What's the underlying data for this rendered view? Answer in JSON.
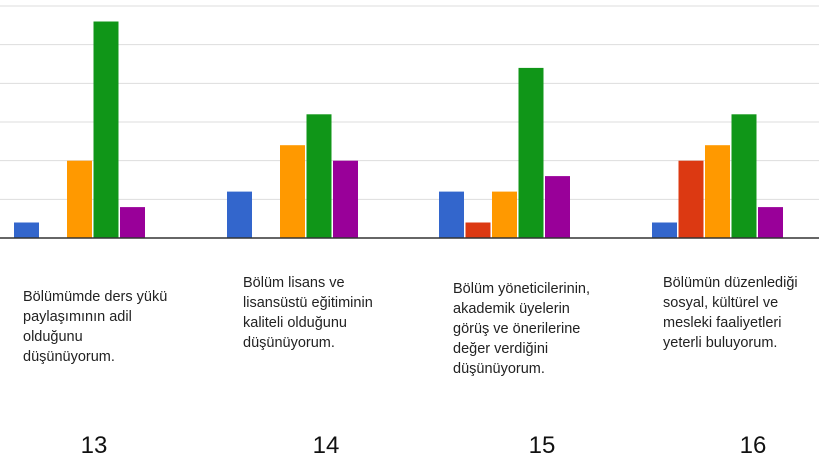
{
  "chart_data": {
    "type": "bar",
    "categories": [
      "Bölümümde ders yükü paylaşımının adil olduğunu düşünüyorum.",
      "Bölüm lisans ve lisansüstü eğitiminin kaliteli olduğunu düşünüyorum.",
      "Bölüm yöneticilerinin, akademik üyelerin görüş ve önerilerine değer verdiğini düşünüyorum.",
      "Bölümün düzenlediği sosyal, kültürel ve mesleki faaliyetleri yeterli buluyorum."
    ],
    "category_label_lines": [
      [
        "Bölümümde ders yükü",
        "paylaşımının adil",
        "olduğunu",
        "düşünüyorum."
      ],
      [
        "Bölüm lisans ve",
        "lisansüstü eğitiminin",
        "kaliteli olduğunu",
        "düşünüyorum."
      ],
      [
        "Bölüm yöneticilerinin,",
        "akademik üyelerin",
        "görüş ve önerilerine",
        "değer verdiğini",
        "düşünüyorum."
      ],
      [
        "Bölümün düzenlediği",
        "sosyal, kültürel ve",
        "mesleki faaliyetleri",
        "yeterli buluyorum."
      ]
    ],
    "question_numbers": [
      "13",
      "14",
      "15",
      "16"
    ],
    "series": [
      {
        "color": "#3366cc",
        "values": [
          0.4,
          1.2,
          1.2,
          0.4
        ]
      },
      {
        "color": "#dc3912",
        "values": [
          0,
          0,
          0.4,
          2
        ]
      },
      {
        "color": "#ff9900",
        "values": [
          2,
          2.4,
          1.2,
          2.4
        ]
      },
      {
        "color": "#109618",
        "values": [
          5.6,
          3.2,
          4.4,
          3.2
        ]
      },
      {
        "color": "#990099",
        "values": [
          0.8,
          2,
          1.6,
          0.8
        ]
      }
    ],
    "ylim": [
      0,
      6
    ],
    "gridlines": [
      1,
      2,
      3,
      4,
      5,
      6
    ],
    "grid": true,
    "legend": "none",
    "xlabel": "",
    "ylabel": ""
  }
}
